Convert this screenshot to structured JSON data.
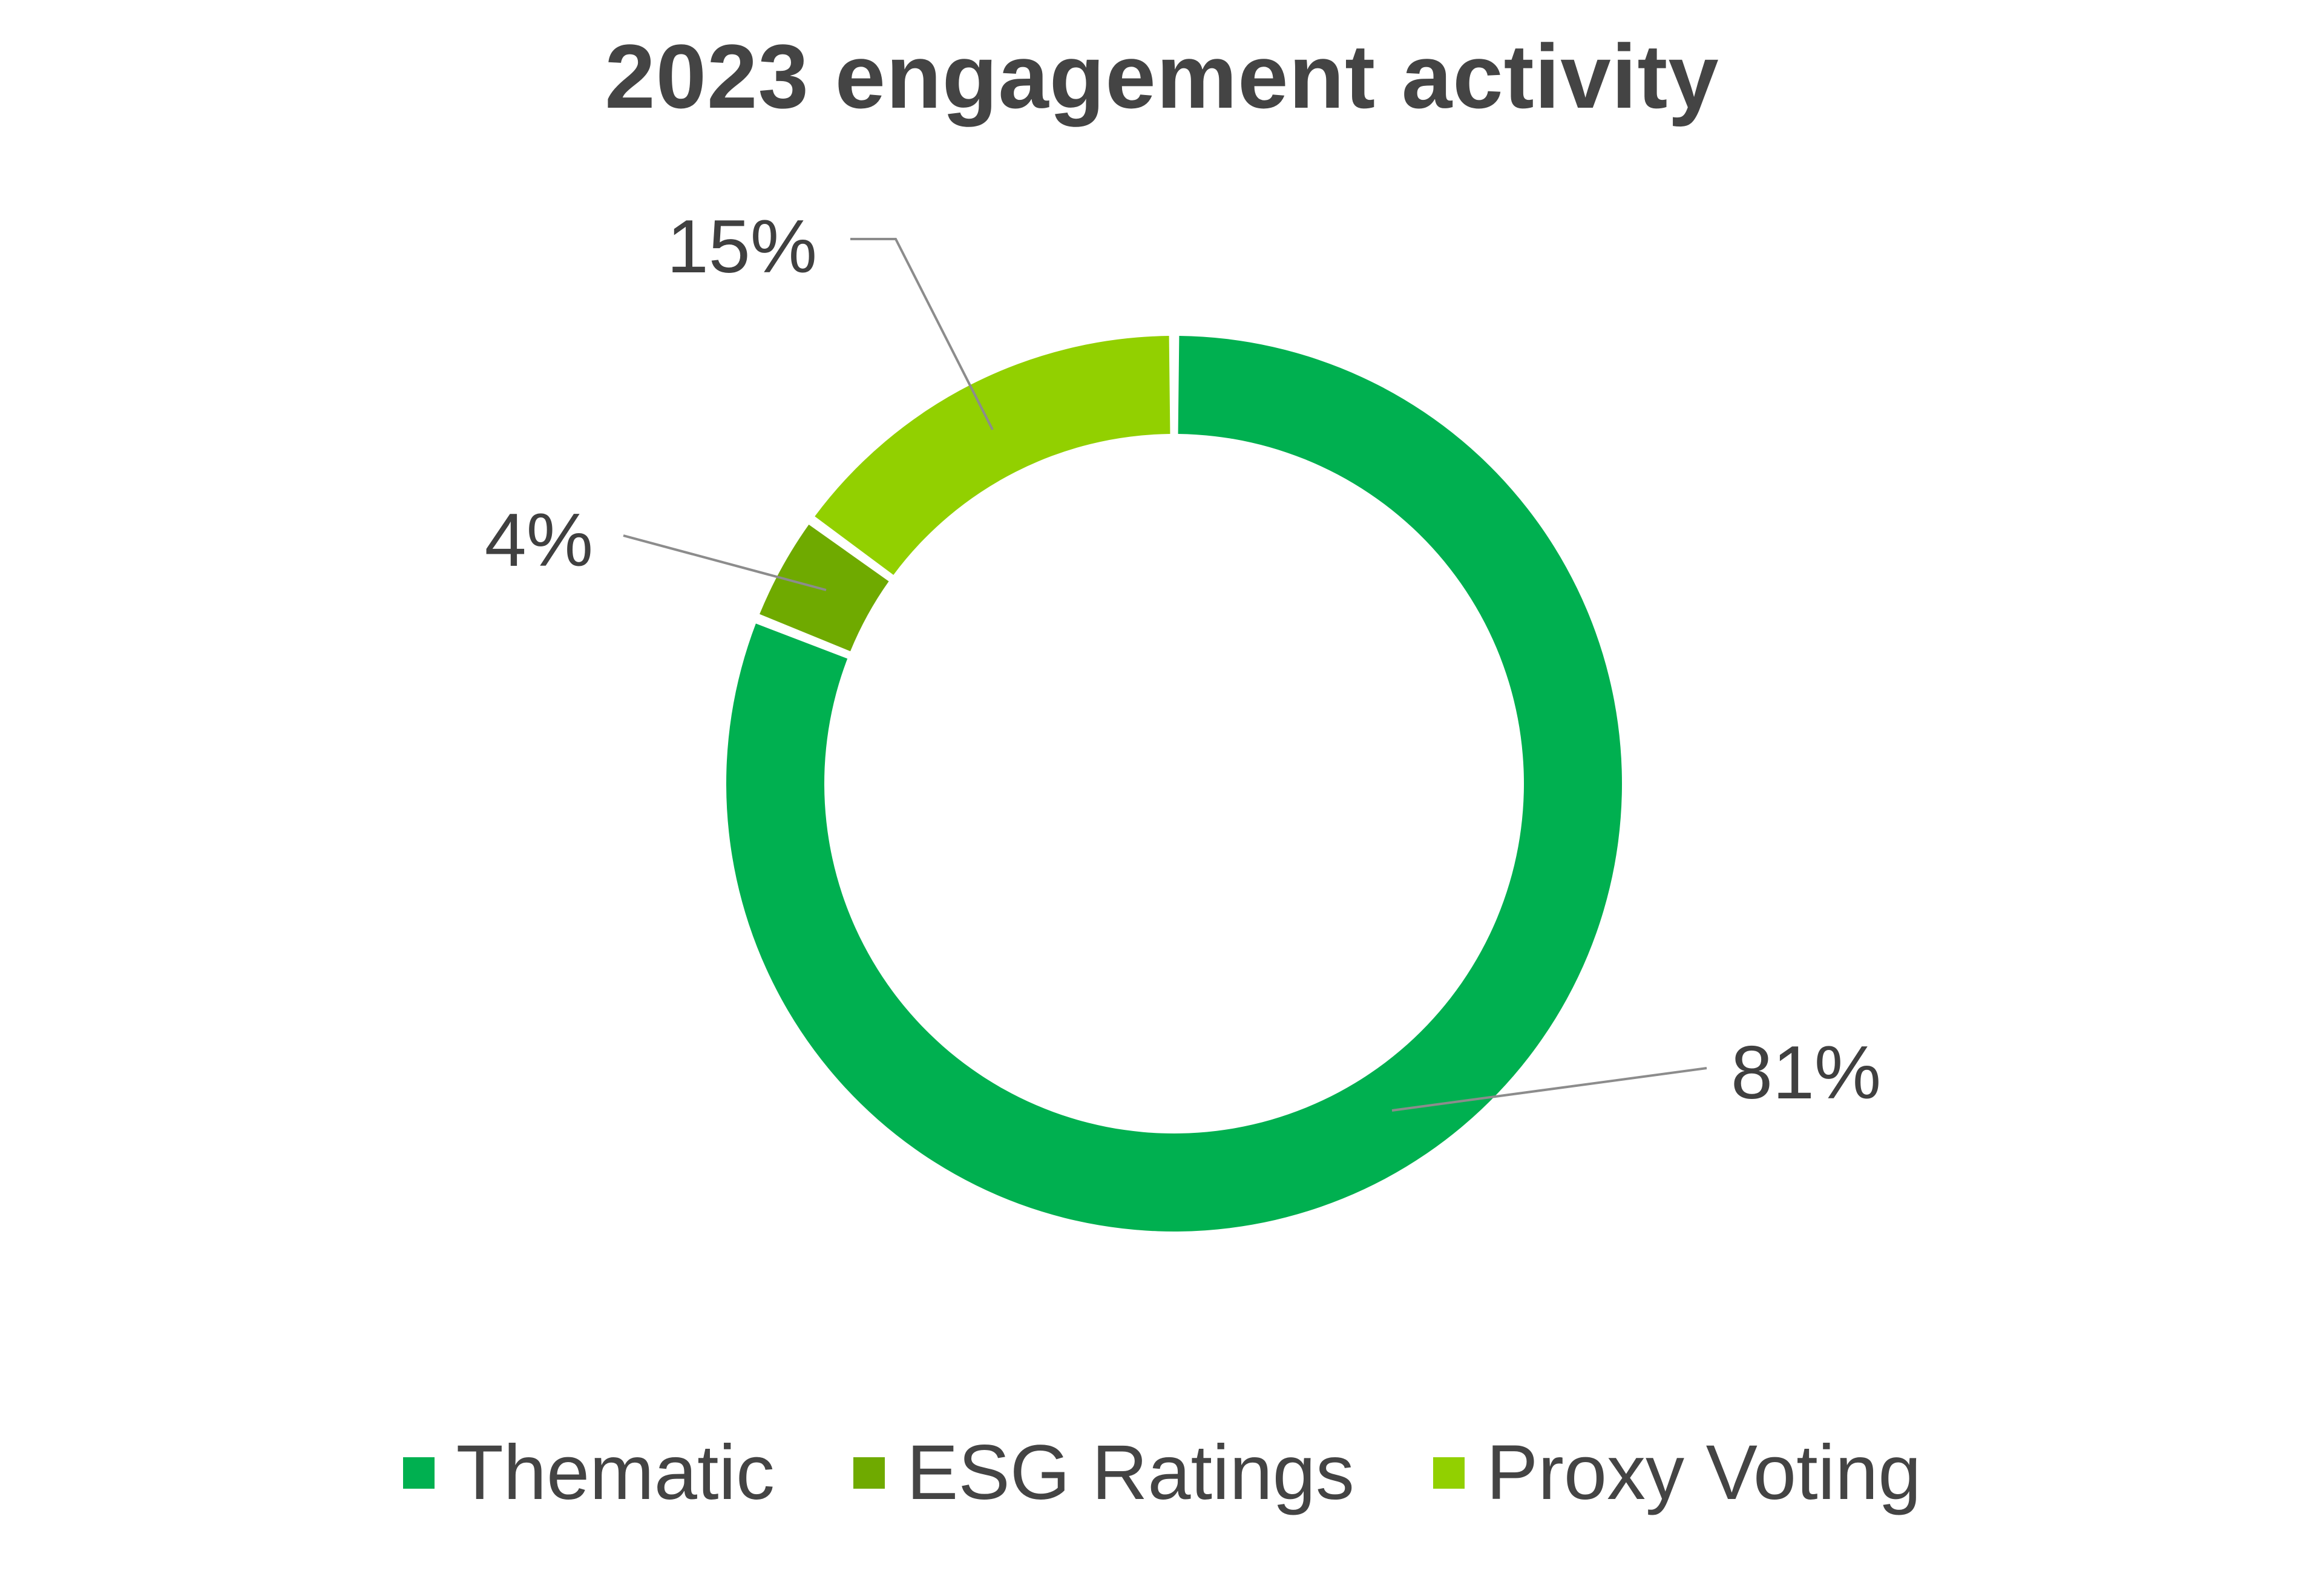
{
  "chart_data": {
    "type": "pie",
    "variant": "donut",
    "title": "2023 engagement activity",
    "series": [
      {
        "name": "Thematic",
        "value": 81,
        "label": "81%",
        "color": "#00B050"
      },
      {
        "name": "ESG Ratings",
        "value": 4,
        "label": "4%",
        "color": "#6FAA00"
      },
      {
        "name": "Proxy Voting",
        "value": 15,
        "label": "15%",
        "color": "#92D000"
      }
    ],
    "legend_position": "bottom",
    "start_angle": "top",
    "direction": "clockwise"
  }
}
